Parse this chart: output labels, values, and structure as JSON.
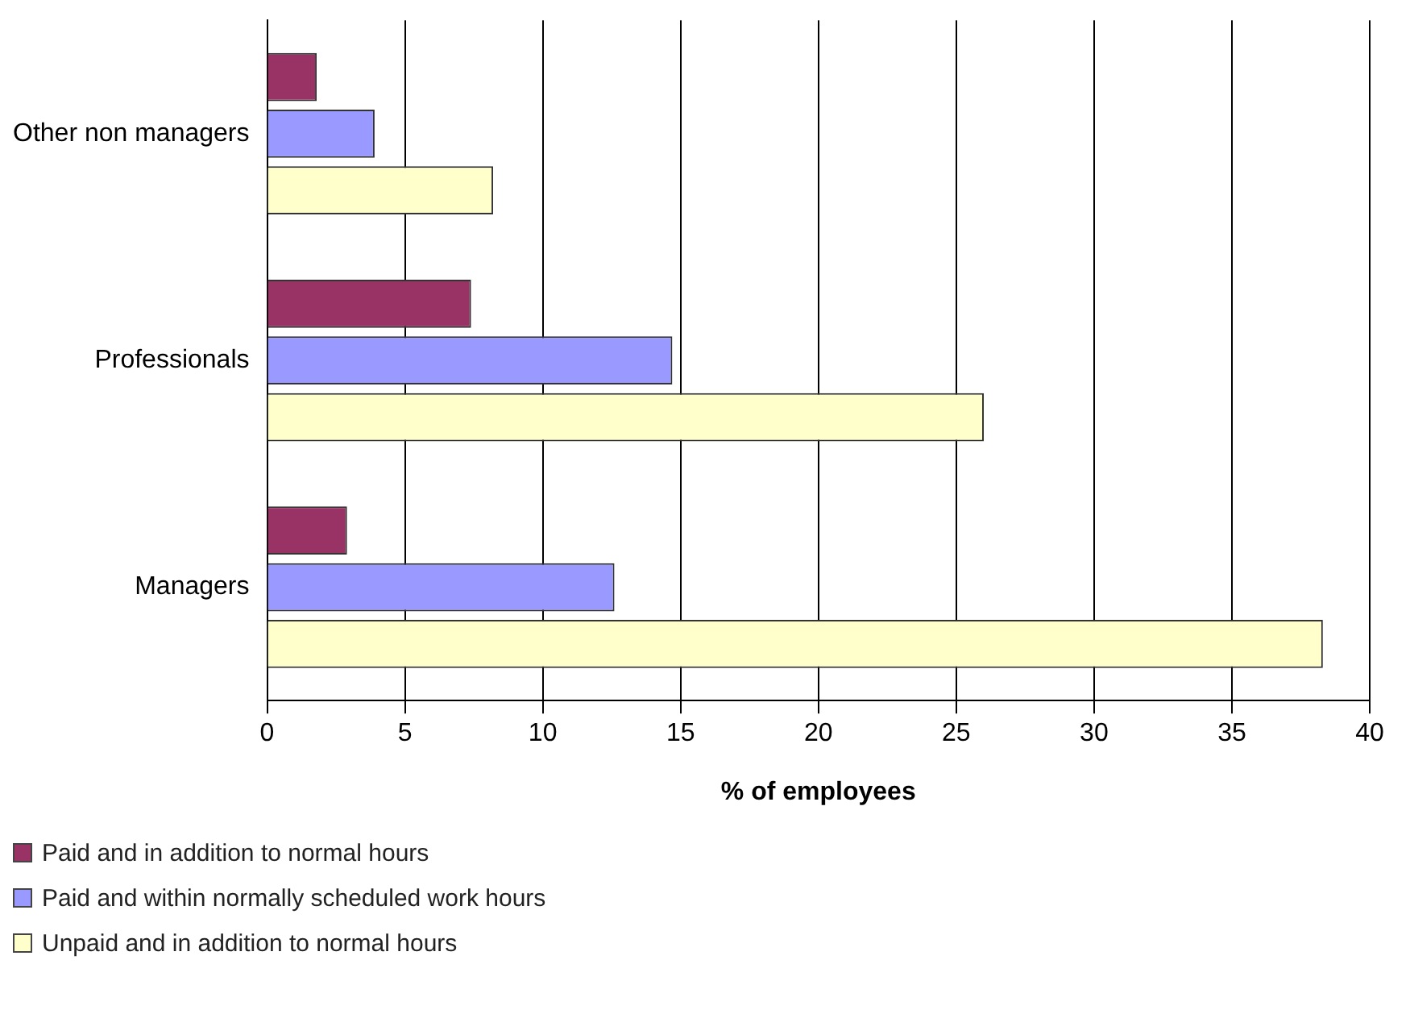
{
  "chart_data": {
    "type": "bar",
    "orientation": "horizontal",
    "xlabel": "% of employees",
    "categories": [
      "Other non managers",
      "Professionals",
      "Managers"
    ],
    "series": [
      {
        "name": "Paid and in addition to normal hours",
        "color": "#993366",
        "values": [
          1.8,
          7.4,
          2.9
        ]
      },
      {
        "name": "Paid and within normally scheduled work hours",
        "color": "#9999ff",
        "values": [
          3.9,
          14.7,
          12.6
        ]
      },
      {
        "name": "Unpaid and in addition to normal hours",
        "color": "#ffffcc",
        "values": [
          8.2,
          26,
          38.3
        ]
      }
    ],
    "xlim": [
      0,
      40
    ],
    "xticks": [
      0,
      5,
      10,
      15,
      20,
      25,
      30,
      35,
      40
    ],
    "grid": "x",
    "legend": "bottom left"
  }
}
